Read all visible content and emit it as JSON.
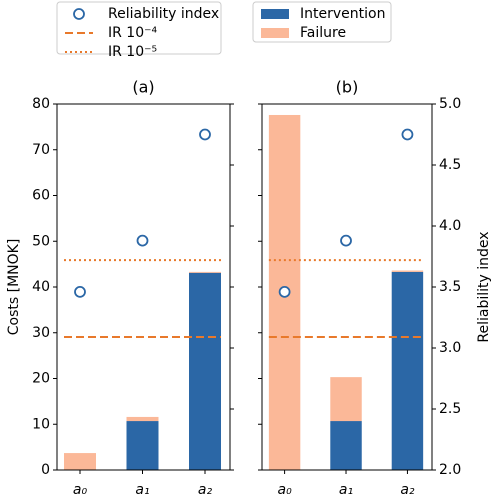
{
  "chart_data": [
    {
      "type": "bar",
      "title": "(a)",
      "ylabel": "Costs [MNOK]",
      "categories": [
        "a₀",
        "a₁",
        "a₂"
      ],
      "series": [
        {
          "name": "Intervention",
          "color": "#2b67a6",
          "values": [
            0,
            10.7,
            43.1
          ]
        },
        {
          "name": "Failure",
          "color": "#fbb898",
          "values": [
            3.7,
            0.9,
            0.2
          ]
        },
        {
          "name": "Reliability index",
          "color": "#2b67a6",
          "type": "scatter",
          "axis": "y2",
          "values": [
            3.46,
            3.88,
            4.75
          ]
        }
      ],
      "hlines": [
        {
          "name": "IR 10⁻⁴",
          "color": "#e8792b",
          "style": "dashed",
          "axis": "y2",
          "value": 3.09
        },
        {
          "name": "IR 10⁻⁵",
          "color": "#e8792b",
          "style": "dotted",
          "axis": "y2",
          "value": 3.72
        }
      ],
      "ylim": [
        0,
        80
      ],
      "yticks": [
        0,
        10,
        20,
        30,
        40,
        50,
        60,
        70,
        80
      ],
      "ytick_labels": true,
      "y2lim": [
        2,
        5
      ],
      "y2ticks": [
        2,
        2.5,
        3,
        3.5,
        4,
        4.5,
        5
      ],
      "y2tick_labels": false
    },
    {
      "type": "bar",
      "title": "(b)",
      "y2label": "Reliability index",
      "categories": [
        "a₀",
        "a₁",
        "a₂"
      ],
      "series": [
        {
          "name": "Intervention",
          "color": "#2b67a6",
          "values": [
            0,
            10.7,
            43.3
          ]
        },
        {
          "name": "Failure",
          "color": "#fbb898",
          "values": [
            77.6,
            9.6,
            0.3
          ]
        },
        {
          "name": "Reliability index",
          "color": "#2b67a6",
          "type": "scatter",
          "axis": "y2",
          "values": [
            3.46,
            3.88,
            4.75
          ]
        }
      ],
      "hlines": [
        {
          "name": "IR 10⁻⁴",
          "color": "#e8792b",
          "style": "dashed",
          "axis": "y2",
          "value": 3.09
        },
        {
          "name": "IR 10⁻⁵",
          "color": "#e8792b",
          "style": "dotted",
          "axis": "y2",
          "value": 3.72
        }
      ],
      "ylim": [
        0,
        80
      ],
      "yticks": [
        0,
        10,
        20,
        30,
        40,
        50,
        60,
        70,
        80
      ],
      "ytick_labels": false,
      "y2lim": [
        2,
        5
      ],
      "y2ticks": [
        {
          "value": 2,
          "label": "2.0"
        },
        {
          "value": 2.5,
          "label": "2.5"
        },
        {
          "value": 3,
          "label": "3.0"
        },
        {
          "value": 3.5,
          "label": "3.5"
        },
        {
          "value": 4,
          "label": "4.0"
        },
        {
          "value": 4.5,
          "label": "4.5"
        },
        {
          "value": 5,
          "label": "5.0"
        }
      ],
      "y2tick_labels": true
    }
  ]
}
